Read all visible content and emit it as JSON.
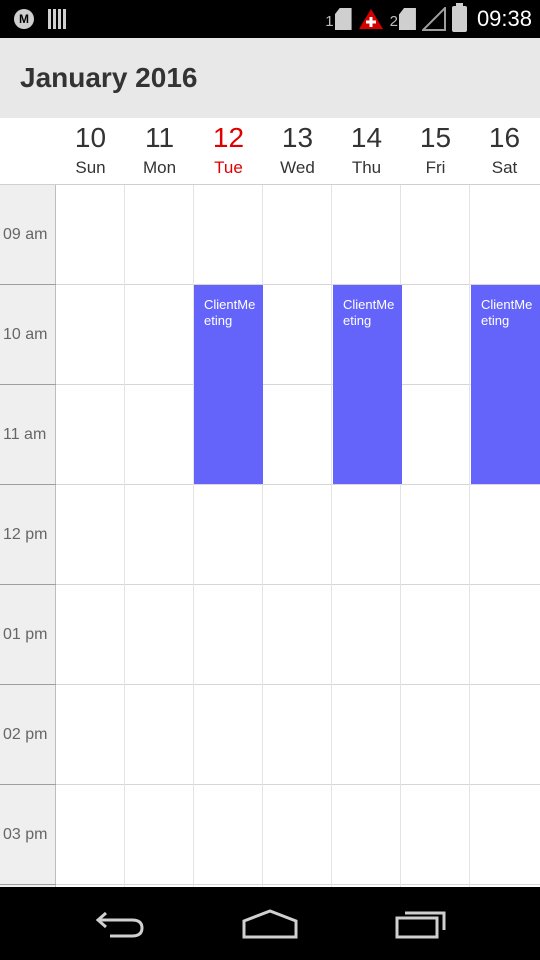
{
  "status_bar": {
    "sim1_label": "1",
    "sim2_label": "2",
    "time": "09:38",
    "icons": [
      "motorola-icon",
      "barcode-icon",
      "sim-card-icon",
      "alert-icon",
      "signal-icon",
      "battery-icon"
    ]
  },
  "header": {
    "title": "January 2016"
  },
  "days": [
    {
      "num": "10",
      "name": "Sun",
      "today": false
    },
    {
      "num": "11",
      "name": "Mon",
      "today": false
    },
    {
      "num": "12",
      "name": "Tue",
      "today": true
    },
    {
      "num": "13",
      "name": "Wed",
      "today": false
    },
    {
      "num": "14",
      "name": "Thu",
      "today": false
    },
    {
      "num": "15",
      "name": "Fri",
      "today": false
    },
    {
      "num": "16",
      "name": "Sat",
      "today": false
    }
  ],
  "time_slots": [
    "09 am",
    "10 am",
    "11 am",
    "12 pm",
    "01 pm",
    "02 pm",
    "03 pm"
  ],
  "events": [
    {
      "title": "ClientMeeting",
      "day": "Tue",
      "start": "10 am",
      "end": "12 pm"
    },
    {
      "title": "ClientMeeting",
      "day": "Thu",
      "start": "10 am",
      "end": "12 pm"
    },
    {
      "title": "ClientMeeting",
      "day": "Sat",
      "start": "10 am",
      "end": "12 pm"
    }
  ],
  "colors": {
    "event": "#6464fa",
    "today": "#e00000",
    "header_bg": "#e8e8e8"
  },
  "nav_bar": {
    "icons": [
      "back-icon",
      "home-icon",
      "recent-apps-icon"
    ]
  }
}
